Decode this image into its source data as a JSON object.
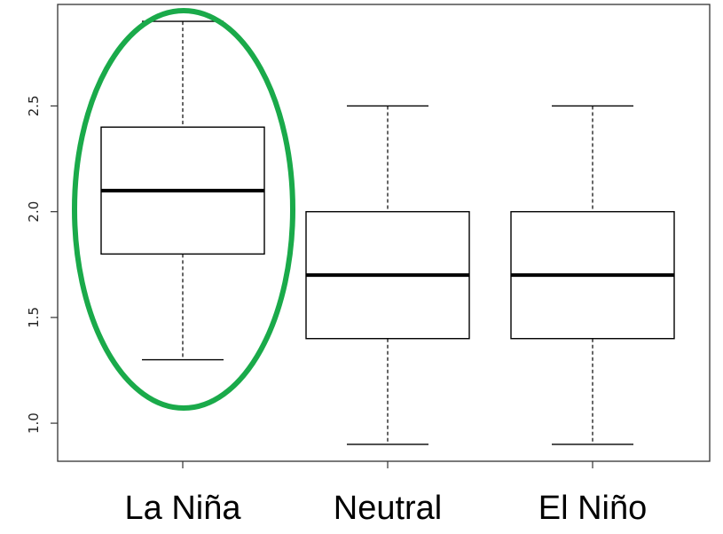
{
  "chart_data": {
    "type": "boxplot",
    "title": "",
    "xlabel": "",
    "ylabel": "",
    "ylim": [
      0.82,
      2.98
    ],
    "yticks": [
      1.0,
      1.5,
      2.0,
      2.5
    ],
    "ytick_labels": [
      "1.0",
      "1.5",
      "2.0",
      "2.5"
    ],
    "grid": false,
    "categories": [
      "La Niña",
      "Neutral",
      "El Niño"
    ],
    "boxes": [
      {
        "category": "La Niña",
        "whisker_low": 1.3,
        "q1": 1.8,
        "median": 2.1,
        "q3": 2.4,
        "whisker_high": 2.9,
        "highlighted": true
      },
      {
        "category": "Neutral",
        "whisker_low": 0.9,
        "q1": 1.4,
        "median": 1.7,
        "q3": 2.0,
        "whisker_high": 2.5,
        "highlighted": false
      },
      {
        "category": "El Niño",
        "whisker_low": 0.9,
        "q1": 1.4,
        "median": 1.7,
        "q3": 2.0,
        "whisker_high": 2.5,
        "highlighted": false
      }
    ],
    "highlight_color": "#1aaa4a",
    "box_color": "#000000"
  }
}
